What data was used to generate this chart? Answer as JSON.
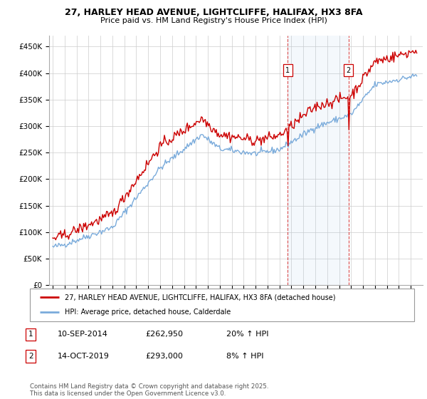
{
  "title_line1": "27, HARLEY HEAD AVENUE, LIGHTCLIFFE, HALIFAX, HX3 8FA",
  "title_line2": "Price paid vs. HM Land Registry's House Price Index (HPI)",
  "background_color": "#ffffff",
  "grid_color": "#cccccc",
  "line1_color": "#cc0000",
  "line2_color": "#7aabdb",
  "sale1_x": 2014.69,
  "sale2_x": 2019.79,
  "legend_line1": "27, HARLEY HEAD AVENUE, LIGHTCLIFFE, HALIFAX, HX3 8FA (detached house)",
  "legend_line2": "HPI: Average price, detached house, Calderdale",
  "footer": "Contains HM Land Registry data © Crown copyright and database right 2025.\nThis data is licensed under the Open Government Licence v3.0.",
  "ylim_min": 0,
  "ylim_max": 470000,
  "yticks": [
    0,
    50000,
    100000,
    150000,
    200000,
    250000,
    300000,
    350000,
    400000,
    450000
  ],
  "ytick_labels": [
    "£0",
    "£50K",
    "£100K",
    "£150K",
    "£200K",
    "£250K",
    "£300K",
    "£350K",
    "£400K",
    "£450K"
  ],
  "xlim_min": 1994.7,
  "xlim_max": 2026.0
}
